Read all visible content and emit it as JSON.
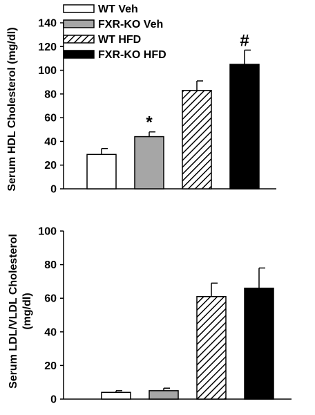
{
  "chart_data": [
    {
      "type": "bar",
      "categories": [
        "WT Veh",
        "FXR-KO Veh",
        "WT HFD",
        "FXR-KO HFD"
      ],
      "values": [
        29,
        44,
        83,
        105
      ],
      "errors": [
        5,
        4,
        8,
        12
      ],
      "annotations": [
        "",
        "*",
        "",
        "#"
      ],
      "ylabel": "Serum HDL Cholesterol (mg/dl)",
      "ylim": [
        0,
        140
      ],
      "yticks": [
        0,
        20,
        40,
        60,
        80,
        100,
        120,
        140
      ],
      "legend": {
        "placement": "top-left",
        "entries": [
          "WT Veh",
          "FXR-KO Veh",
          "WT HFD",
          "FXR-KO HFD"
        ]
      }
    },
    {
      "type": "bar",
      "categories": [
        "WT Veh",
        "FXR-KO Veh",
        "WT HFD",
        "FXR-KO HFD"
      ],
      "values": [
        4,
        5,
        61,
        66
      ],
      "errors": [
        1,
        1.5,
        8,
        12
      ],
      "annotations": [
        "",
        "",
        "",
        ""
      ],
      "ylabel_lines": [
        "Serum LDL/VLDL Cholesterol",
        "(mg/dl)"
      ],
      "ylim": [
        0,
        100
      ],
      "yticks": [
        0,
        20,
        40,
        60,
        80,
        100
      ]
    }
  ],
  "styles": {
    "fills": [
      "#ffffff",
      "#a6a6a6",
      "hatch",
      "#000000"
    ],
    "stroke": "#000000"
  }
}
